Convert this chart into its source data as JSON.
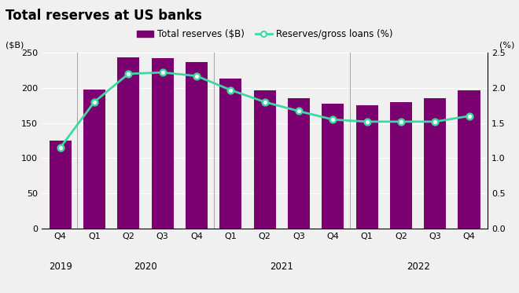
{
  "title": "Total reserves at US banks",
  "ylabel_left": "($B)",
  "ylabel_right": "(%)",
  "bar_color": "#7B0070",
  "line_color": "#3DD9A0",
  "background_color": "#f0f0f0",
  "plot_bg_color": "#f0f0f0",
  "group_dividers": [
    0.5,
    4.5,
    8.5
  ],
  "quarter_labels": [
    "Q4",
    "Q1",
    "Q2",
    "Q3",
    "Q4",
    "Q1",
    "Q2",
    "Q3",
    "Q4",
    "Q1",
    "Q2",
    "Q3",
    "Q4"
  ],
  "bar_values": [
    125,
    198,
    243,
    242,
    237,
    213,
    196,
    185,
    178,
    175,
    180,
    185,
    196
  ],
  "line_values": [
    1.15,
    1.8,
    2.2,
    2.22,
    2.17,
    1.97,
    1.8,
    1.67,
    1.55,
    1.52,
    1.52,
    1.52,
    1.6
  ],
  "ylim_left": [
    0,
    250
  ],
  "ylim_right": [
    0.0,
    2.5
  ],
  "yticks_left": [
    0,
    50,
    100,
    150,
    200,
    250
  ],
  "yticks_right": [
    0.0,
    0.5,
    1.0,
    1.5,
    2.0,
    2.5
  ],
  "legend_bar_label": "Total reserves ($B)",
  "legend_line_label": "Reserves/gross loans (%)",
  "year_labels": [
    {
      "label": "2019",
      "bar_idx": 0
    },
    {
      "label": "2020",
      "bar_idx": 2.5
    },
    {
      "label": "2021",
      "bar_idx": 6.5
    },
    {
      "label": "2022",
      "bar_idx": 10.5
    }
  ],
  "fig_width": 6.6,
  "fig_height": 3.73,
  "dpi": 100
}
